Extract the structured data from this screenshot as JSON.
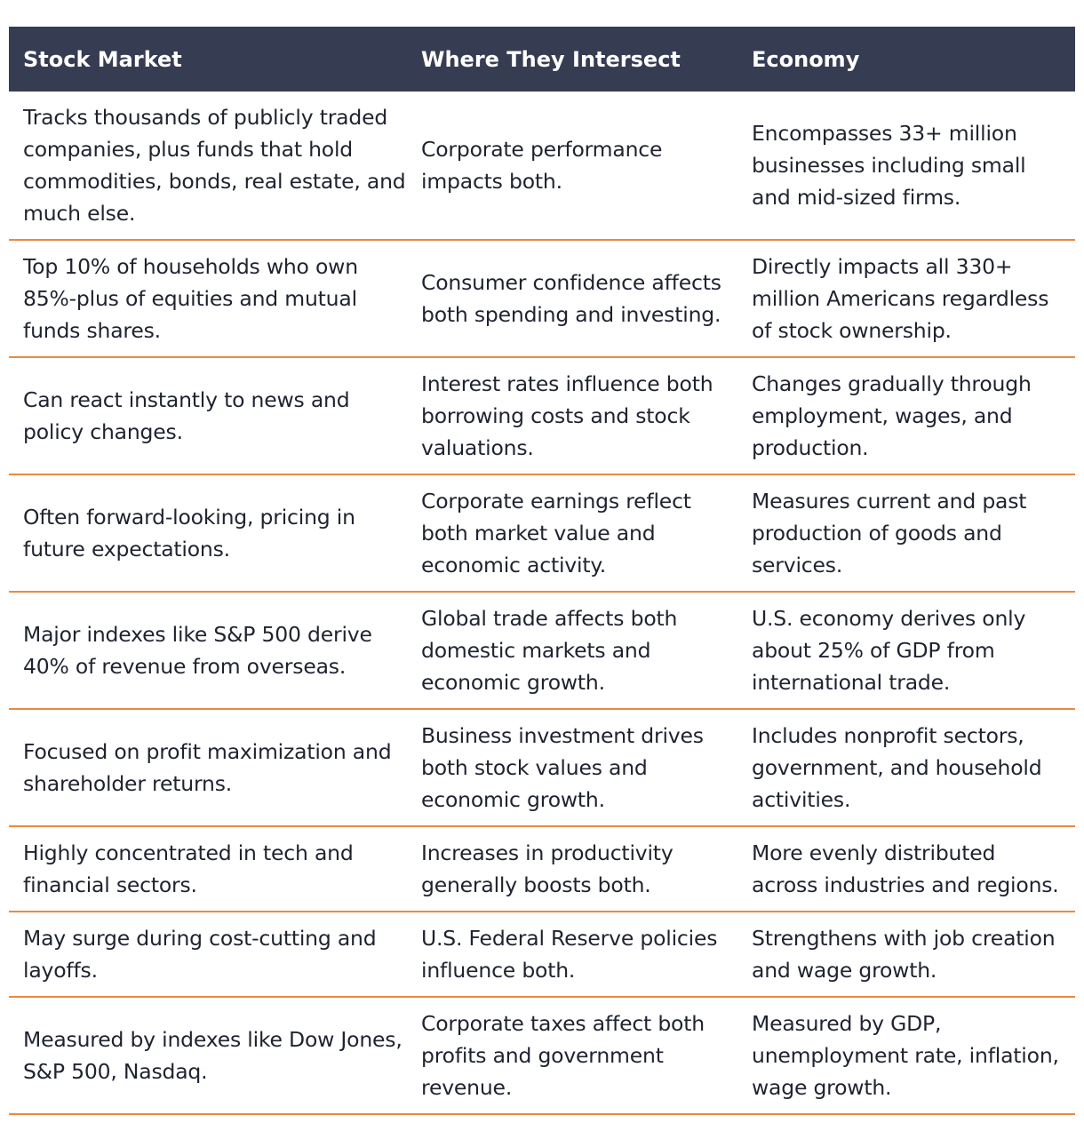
{
  "table": {
    "headers": [
      "Stock Market",
      "Where They Intersect",
      "Economy"
    ],
    "rows": [
      [
        "Tracks thousands of publicly traded companies, plus funds that hold commodities, bonds, real estate, and much else.",
        "Corporate performance impacts both.",
        "Encompasses 33+ million businesses including small and mid-sized firms."
      ],
      [
        "Top 10% of households who own 85%-plus of equities and mutual funds shares.",
        "Consumer confidence affects both spending and investing.",
        "Directly impacts all 330+ million Americans regardless of stock ownership."
      ],
      [
        "Can react instantly to news and policy changes.",
        "Interest rates influence both borrowing costs and stock valuations.",
        "Changes gradually through employment, wages, and production."
      ],
      [
        "Often forward-looking, pricing in future expectations.",
        "Corporate earnings reflect both market value and economic activity.",
        "Measures current and past production of goods and services."
      ],
      [
        "Major indexes like S&P 500 derive 40% of revenue from overseas.",
        "Global trade affects both domestic markets and economic growth.",
        "U.S. economy derives only about 25% of GDP from international trade."
      ],
      [
        "Focused on profit maximization and shareholder returns.",
        "Business investment drives both stock values and economic growth.",
        "Includes nonprofit sectors, government, and household activities."
      ],
      [
        "Highly concentrated in tech and financial sectors.",
        "Increases in productivity generally boosts both.",
        "More evenly distributed across industries and regions."
      ],
      [
        "May surge during cost-cutting and layoffs.",
        "U.S. Federal Reserve policies influence both.",
        "Strengthens with job creation and wage growth."
      ],
      [
        "Measured by indexes like Dow Jones, S&P 500, Nasdaq.",
        "Corporate taxes affect both profits and government revenue.",
        "Measured by GDP, unemployment rate, inflation, wage growth."
      ]
    ]
  },
  "colors": {
    "header_bg": "#363c52",
    "header_text": "#ffffff",
    "divider": "#e98a3f",
    "body_text": "#1f2330"
  }
}
